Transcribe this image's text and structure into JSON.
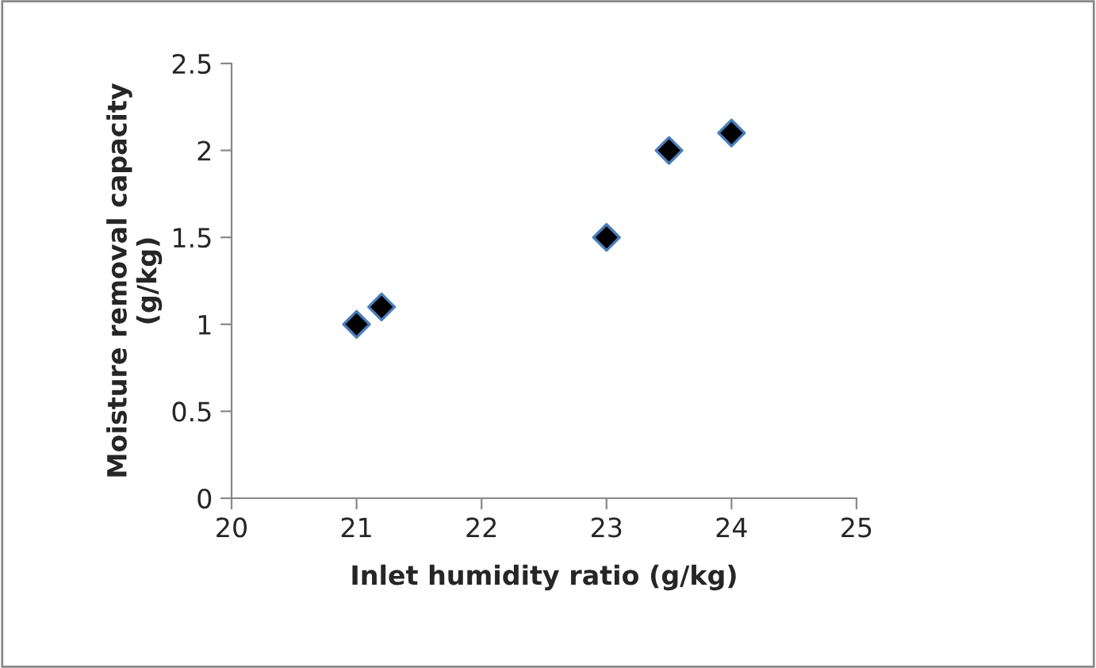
{
  "chart_data": {
    "type": "scatter",
    "xlabel": "Inlet humidity ratio (g/kg)",
    "ylabel": "Moisture removal capacity\n(g/kg)",
    "x": [
      21,
      21.2,
      23,
      23.5,
      24
    ],
    "series": [
      {
        "color": "#000000",
        "values": [
          1,
          1.1,
          1.5,
          2,
          2.1
        ]
      }
    ],
    "xlim": [
      20,
      25
    ],
    "xticks": [
      20,
      21,
      22,
      23,
      24,
      25
    ],
    "ylim": [
      0,
      2.5
    ],
    "yticks": [
      0,
      0.5,
      1,
      1.5,
      2,
      2.5
    ],
    "marker": "diamond",
    "grid": false,
    "legend": false
  }
}
